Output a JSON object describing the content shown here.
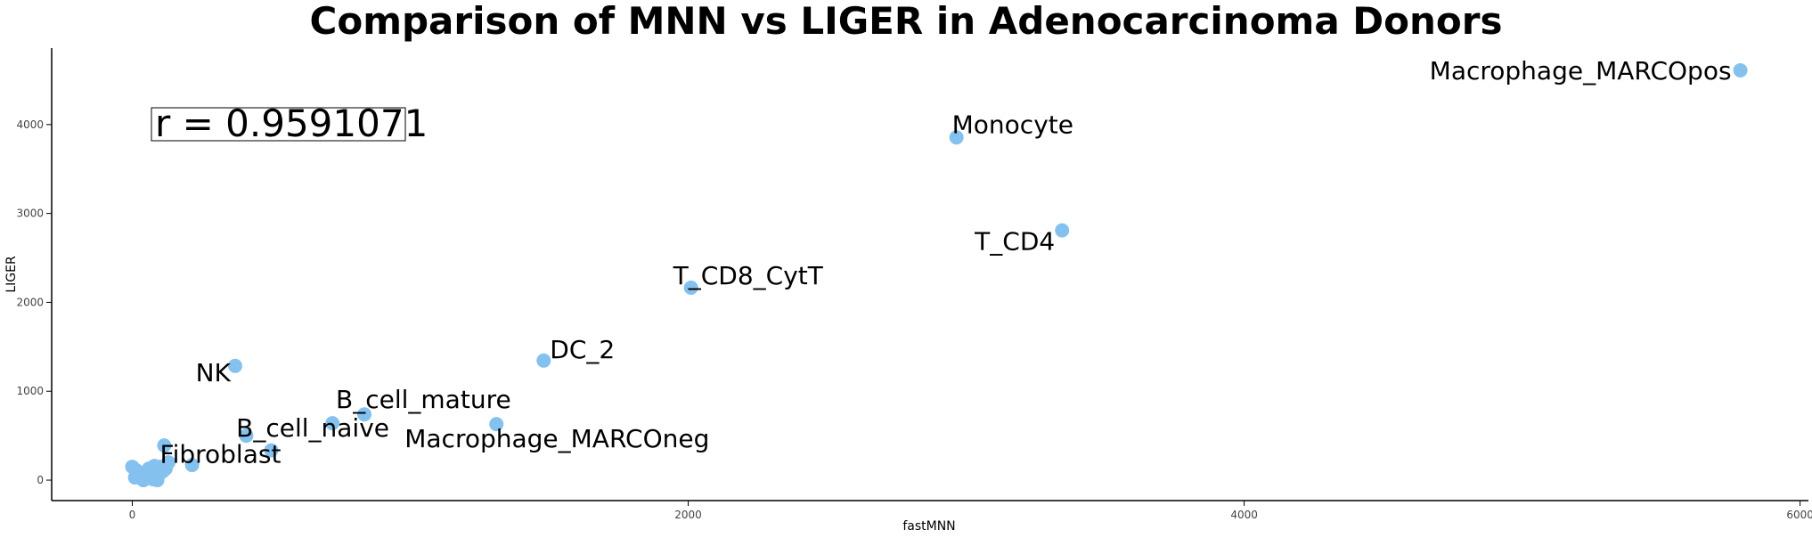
{
  "chart_data": {
    "type": "scatter",
    "title": "Comparison of MNN vs LIGER in Adenocarcinoma Donors",
    "xlabel": "fastMNN",
    "ylabel": "LIGER",
    "xlim": [
      -290,
      6030
    ],
    "ylim": [
      -230,
      4860
    ],
    "x_ticks": [
      "0",
      "2000",
      "4000",
      "6000"
    ],
    "y_ticks": [
      "0",
      "1000",
      "2000",
      "3000",
      "4000"
    ],
    "annotation": "r = 0.9591071",
    "point_color": "#85C1EE",
    "grid": false,
    "points": [
      {
        "x": 5785,
        "y": 4610,
        "label": "Macrophage_MARCOpos"
      },
      {
        "x": 2965,
        "y": 3855,
        "label": "Monocyte"
      },
      {
        "x": 3345,
        "y": 2810,
        "label": "T_CD4"
      },
      {
        "x": 2010,
        "y": 2165,
        "label": "T_CD8_CytT"
      },
      {
        "x": 1480,
        "y": 1345,
        "label": "DC_2"
      },
      {
        "x": 370,
        "y": 1285,
        "label": "NK"
      },
      {
        "x": 835,
        "y": 740,
        "label": "B_cell_mature"
      },
      {
        "x": 720,
        "y": 640,
        "label": "B_cell_naive"
      },
      {
        "x": 1310,
        "y": 630,
        "label": "Macrophage_MARCOneg"
      },
      {
        "x": 500,
        "y": 335,
        "label": "Fibroblast"
      },
      {
        "x": 410,
        "y": 500,
        "label": ""
      },
      {
        "x": 215,
        "y": 170,
        "label": ""
      },
      {
        "x": 115,
        "y": 390,
        "label": ""
      },
      {
        "x": 0,
        "y": 150,
        "label": ""
      },
      {
        "x": 15,
        "y": 110,
        "label": ""
      },
      {
        "x": 30,
        "y": 70,
        "label": ""
      },
      {
        "x": 10,
        "y": 30,
        "label": ""
      },
      {
        "x": 45,
        "y": 40,
        "label": ""
      },
      {
        "x": 60,
        "y": 130,
        "label": ""
      },
      {
        "x": 75,
        "y": 10,
        "label": ""
      },
      {
        "x": 80,
        "y": 160,
        "label": ""
      },
      {
        "x": 95,
        "y": 60,
        "label": ""
      },
      {
        "x": 100,
        "y": 150,
        "label": ""
      },
      {
        "x": 110,
        "y": 100,
        "label": ""
      },
      {
        "x": 120,
        "y": 130,
        "label": ""
      },
      {
        "x": 130,
        "y": 200,
        "label": ""
      },
      {
        "x": 90,
        "y": 0,
        "label": ""
      },
      {
        "x": 40,
        "y": 0,
        "label": ""
      },
      {
        "x": 55,
        "y": 90,
        "label": ""
      },
      {
        "x": 70,
        "y": 40,
        "label": ""
      }
    ]
  }
}
